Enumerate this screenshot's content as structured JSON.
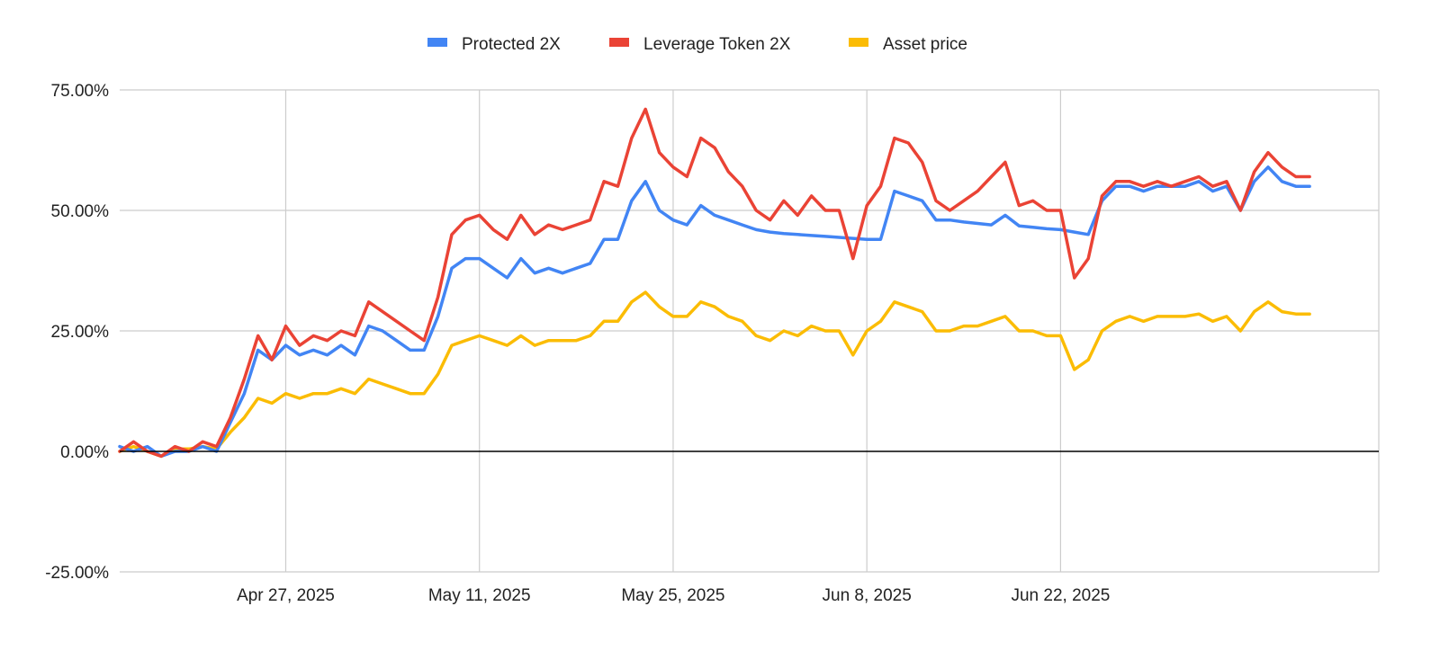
{
  "chart_data": {
    "type": "line",
    "title": "",
    "xlabel": "",
    "ylabel": "",
    "x_start": "2025-04-15",
    "x_end": "2025-07-15",
    "x_ticks": [
      {
        "label": "Apr 27, 2025",
        "date": "2025-04-27"
      },
      {
        "label": "May 11, 2025",
        "date": "2025-05-11"
      },
      {
        "label": "May 25, 2025",
        "date": "2025-05-25"
      },
      {
        "label": "Jun 8, 2025",
        "date": "2025-06-08"
      },
      {
        "label": "Jun 22, 2025",
        "date": "2025-06-22"
      }
    ],
    "ylim": [
      -25,
      75
    ],
    "y_ticks": [
      {
        "label": "75.00%",
        "value": 75
      },
      {
        "label": "50.00%",
        "value": 50
      },
      {
        "label": "25.00%",
        "value": 25
      },
      {
        "label": "0.00%",
        "value": 0
      },
      {
        "label": "-25.00%",
        "value": -25
      }
    ],
    "grid": true,
    "legend_position": "top-center",
    "series": [
      {
        "name": "Protected 2X",
        "color": "#4285f4",
        "points": [
          [
            "2025-04-15",
            1
          ],
          [
            "2025-04-16",
            0
          ],
          [
            "2025-04-17",
            1
          ],
          [
            "2025-04-18",
            -1
          ],
          [
            "2025-04-19",
            0
          ],
          [
            "2025-04-20",
            0
          ],
          [
            "2025-04-21",
            1
          ],
          [
            "2025-04-22",
            0
          ],
          [
            "2025-04-23",
            6
          ],
          [
            "2025-04-24",
            12
          ],
          [
            "2025-04-25",
            21
          ],
          [
            "2025-04-26",
            19
          ],
          [
            "2025-04-27",
            22
          ],
          [
            "2025-04-28",
            20
          ],
          [
            "2025-04-29",
            21
          ],
          [
            "2025-04-30",
            20
          ],
          [
            "2025-05-01",
            22
          ],
          [
            "2025-05-02",
            20
          ],
          [
            "2025-05-03",
            26
          ],
          [
            "2025-05-04",
            25
          ],
          [
            "2025-05-05",
            23
          ],
          [
            "2025-05-06",
            21
          ],
          [
            "2025-05-07",
            21
          ],
          [
            "2025-05-08",
            28
          ],
          [
            "2025-05-09",
            38
          ],
          [
            "2025-05-10",
            40
          ],
          [
            "2025-05-11",
            40
          ],
          [
            "2025-05-12",
            38
          ],
          [
            "2025-05-13",
            36
          ],
          [
            "2025-05-14",
            40
          ],
          [
            "2025-05-15",
            37
          ],
          [
            "2025-05-16",
            38
          ],
          [
            "2025-05-17",
            37
          ],
          [
            "2025-05-18",
            38
          ],
          [
            "2025-05-19",
            39
          ],
          [
            "2025-05-20",
            44
          ],
          [
            "2025-05-21",
            44
          ],
          [
            "2025-05-22",
            52
          ],
          [
            "2025-05-23",
            56
          ],
          [
            "2025-05-24",
            50
          ],
          [
            "2025-05-25",
            48
          ],
          [
            "2025-05-26",
            47
          ],
          [
            "2025-05-27",
            51
          ],
          [
            "2025-05-28",
            49
          ],
          [
            "2025-05-29",
            48
          ],
          [
            "2025-05-30",
            47
          ],
          [
            "2025-05-31",
            46
          ],
          [
            "2025-06-01",
            45.5
          ],
          [
            "2025-06-02",
            45.2
          ],
          [
            "2025-06-03",
            45
          ],
          [
            "2025-06-04",
            44.8
          ],
          [
            "2025-06-05",
            44.6
          ],
          [
            "2025-06-06",
            44.4
          ],
          [
            "2025-06-07",
            44.2
          ],
          [
            "2025-06-08",
            44
          ],
          [
            "2025-06-09",
            44
          ],
          [
            "2025-06-10",
            54
          ],
          [
            "2025-06-11",
            53
          ],
          [
            "2025-06-12",
            52
          ],
          [
            "2025-06-13",
            48
          ],
          [
            "2025-06-14",
            48
          ],
          [
            "2025-06-15",
            47.6
          ],
          [
            "2025-06-16",
            47.3
          ],
          [
            "2025-06-17",
            47
          ],
          [
            "2025-06-18",
            49
          ],
          [
            "2025-06-19",
            46.8
          ],
          [
            "2025-06-20",
            46.5
          ],
          [
            "2025-06-21",
            46.2
          ],
          [
            "2025-06-22",
            46
          ],
          [
            "2025-06-23",
            45.5
          ],
          [
            "2025-06-24",
            45
          ],
          [
            "2025-06-25",
            52
          ],
          [
            "2025-06-26",
            55
          ],
          [
            "2025-06-27",
            55
          ],
          [
            "2025-06-28",
            54
          ],
          [
            "2025-06-29",
            55
          ],
          [
            "2025-06-30",
            55
          ],
          [
            "2025-07-01",
            55
          ],
          [
            "2025-07-02",
            56
          ],
          [
            "2025-07-03",
            54
          ],
          [
            "2025-07-04",
            55
          ],
          [
            "2025-07-05",
            50
          ],
          [
            "2025-07-06",
            56
          ],
          [
            "2025-07-07",
            59
          ],
          [
            "2025-07-08",
            56
          ],
          [
            "2025-07-09",
            55
          ],
          [
            "2025-07-10",
            55
          ]
        ]
      },
      {
        "name": "Leverage Token 2X",
        "color": "#ea4335",
        "points": [
          [
            "2025-04-15",
            0
          ],
          [
            "2025-04-16",
            2
          ],
          [
            "2025-04-17",
            0
          ],
          [
            "2025-04-18",
            -1
          ],
          [
            "2025-04-19",
            1
          ],
          [
            "2025-04-20",
            0
          ],
          [
            "2025-04-21",
            2
          ],
          [
            "2025-04-22",
            1
          ],
          [
            "2025-04-23",
            7
          ],
          [
            "2025-04-24",
            15
          ],
          [
            "2025-04-25",
            24
          ],
          [
            "2025-04-26",
            19
          ],
          [
            "2025-04-27",
            26
          ],
          [
            "2025-04-28",
            22
          ],
          [
            "2025-04-29",
            24
          ],
          [
            "2025-04-30",
            23
          ],
          [
            "2025-05-01",
            25
          ],
          [
            "2025-05-02",
            24
          ],
          [
            "2025-05-03",
            31
          ],
          [
            "2025-05-04",
            29
          ],
          [
            "2025-05-05",
            27
          ],
          [
            "2025-05-06",
            25
          ],
          [
            "2025-05-07",
            23
          ],
          [
            "2025-05-08",
            32
          ],
          [
            "2025-05-09",
            45
          ],
          [
            "2025-05-10",
            48
          ],
          [
            "2025-05-11",
            49
          ],
          [
            "2025-05-12",
            46
          ],
          [
            "2025-05-13",
            44
          ],
          [
            "2025-05-14",
            49
          ],
          [
            "2025-05-15",
            45
          ],
          [
            "2025-05-16",
            47
          ],
          [
            "2025-05-17",
            46
          ],
          [
            "2025-05-18",
            47
          ],
          [
            "2025-05-19",
            48
          ],
          [
            "2025-05-20",
            56
          ],
          [
            "2025-05-21",
            55
          ],
          [
            "2025-05-22",
            65
          ],
          [
            "2025-05-23",
            71
          ],
          [
            "2025-05-24",
            62
          ],
          [
            "2025-05-25",
            59
          ],
          [
            "2025-05-26",
            57
          ],
          [
            "2025-05-27",
            65
          ],
          [
            "2025-05-28",
            63
          ],
          [
            "2025-05-29",
            58
          ],
          [
            "2025-05-30",
            55
          ],
          [
            "2025-05-31",
            50
          ],
          [
            "2025-06-01",
            48
          ],
          [
            "2025-06-02",
            52
          ],
          [
            "2025-06-03",
            49
          ],
          [
            "2025-06-04",
            53
          ],
          [
            "2025-06-05",
            50
          ],
          [
            "2025-06-06",
            50
          ],
          [
            "2025-06-07",
            40
          ],
          [
            "2025-06-08",
            51
          ],
          [
            "2025-06-09",
            55
          ],
          [
            "2025-06-10",
            65
          ],
          [
            "2025-06-11",
            64
          ],
          [
            "2025-06-12",
            60
          ],
          [
            "2025-06-13",
            52
          ],
          [
            "2025-06-14",
            50
          ],
          [
            "2025-06-15",
            52
          ],
          [
            "2025-06-16",
            54
          ],
          [
            "2025-06-17",
            57
          ],
          [
            "2025-06-18",
            60
          ],
          [
            "2025-06-19",
            51
          ],
          [
            "2025-06-20",
            52
          ],
          [
            "2025-06-21",
            50
          ],
          [
            "2025-06-22",
            50
          ],
          [
            "2025-06-23",
            36
          ],
          [
            "2025-06-24",
            40
          ],
          [
            "2025-06-25",
            53
          ],
          [
            "2025-06-26",
            56
          ],
          [
            "2025-06-27",
            56
          ],
          [
            "2025-06-28",
            55
          ],
          [
            "2025-06-29",
            56
          ],
          [
            "2025-06-30",
            55
          ],
          [
            "2025-07-01",
            56
          ],
          [
            "2025-07-02",
            57
          ],
          [
            "2025-07-03",
            55
          ],
          [
            "2025-07-04",
            56
          ],
          [
            "2025-07-05",
            50
          ],
          [
            "2025-07-06",
            58
          ],
          [
            "2025-07-07",
            62
          ],
          [
            "2025-07-08",
            59
          ],
          [
            "2025-07-09",
            57
          ],
          [
            "2025-07-10",
            57
          ]
        ]
      },
      {
        "name": "Asset price",
        "color": "#fbbc04",
        "points": [
          [
            "2025-04-15",
            0
          ],
          [
            "2025-04-16",
            1
          ],
          [
            "2025-04-17",
            0
          ],
          [
            "2025-04-18",
            -1
          ],
          [
            "2025-04-19",
            0.5
          ],
          [
            "2025-04-20",
            0.5
          ],
          [
            "2025-04-21",
            1
          ],
          [
            "2025-04-22",
            0.5
          ],
          [
            "2025-04-23",
            4
          ],
          [
            "2025-04-24",
            7
          ],
          [
            "2025-04-25",
            11
          ],
          [
            "2025-04-26",
            10
          ],
          [
            "2025-04-27",
            12
          ],
          [
            "2025-04-28",
            11
          ],
          [
            "2025-04-29",
            12
          ],
          [
            "2025-04-30",
            12
          ],
          [
            "2025-05-01",
            13
          ],
          [
            "2025-05-02",
            12
          ],
          [
            "2025-05-03",
            15
          ],
          [
            "2025-05-04",
            14
          ],
          [
            "2025-05-05",
            13
          ],
          [
            "2025-05-06",
            12
          ],
          [
            "2025-05-07",
            12
          ],
          [
            "2025-05-08",
            16
          ],
          [
            "2025-05-09",
            22
          ],
          [
            "2025-05-10",
            23
          ],
          [
            "2025-05-11",
            24
          ],
          [
            "2025-05-12",
            23
          ],
          [
            "2025-05-13",
            22
          ],
          [
            "2025-05-14",
            24
          ],
          [
            "2025-05-15",
            22
          ],
          [
            "2025-05-16",
            23
          ],
          [
            "2025-05-17",
            23
          ],
          [
            "2025-05-18",
            23
          ],
          [
            "2025-05-19",
            24
          ],
          [
            "2025-05-20",
            27
          ],
          [
            "2025-05-21",
            27
          ],
          [
            "2025-05-22",
            31
          ],
          [
            "2025-05-23",
            33
          ],
          [
            "2025-05-24",
            30
          ],
          [
            "2025-05-25",
            28
          ],
          [
            "2025-05-26",
            28
          ],
          [
            "2025-05-27",
            31
          ],
          [
            "2025-05-28",
            30
          ],
          [
            "2025-05-29",
            28
          ],
          [
            "2025-05-30",
            27
          ],
          [
            "2025-05-31",
            24
          ],
          [
            "2025-06-01",
            23
          ],
          [
            "2025-06-02",
            25
          ],
          [
            "2025-06-03",
            24
          ],
          [
            "2025-06-04",
            26
          ],
          [
            "2025-06-05",
            25
          ],
          [
            "2025-06-06",
            25
          ],
          [
            "2025-06-07",
            20
          ],
          [
            "2025-06-08",
            25
          ],
          [
            "2025-06-09",
            27
          ],
          [
            "2025-06-10",
            31
          ],
          [
            "2025-06-11",
            30
          ],
          [
            "2025-06-12",
            29
          ],
          [
            "2025-06-13",
            25
          ],
          [
            "2025-06-14",
            25
          ],
          [
            "2025-06-15",
            26
          ],
          [
            "2025-06-16",
            26
          ],
          [
            "2025-06-17",
            27
          ],
          [
            "2025-06-18",
            28
          ],
          [
            "2025-06-19",
            25
          ],
          [
            "2025-06-20",
            25
          ],
          [
            "2025-06-21",
            24
          ],
          [
            "2025-06-22",
            24
          ],
          [
            "2025-06-23",
            17
          ],
          [
            "2025-06-24",
            19
          ],
          [
            "2025-06-25",
            25
          ],
          [
            "2025-06-26",
            27
          ],
          [
            "2025-06-27",
            28
          ],
          [
            "2025-06-28",
            27
          ],
          [
            "2025-06-29",
            28
          ],
          [
            "2025-06-30",
            28
          ],
          [
            "2025-07-01",
            28
          ],
          [
            "2025-07-02",
            28.5
          ],
          [
            "2025-07-03",
            27
          ],
          [
            "2025-07-04",
            28
          ],
          [
            "2025-07-05",
            25
          ],
          [
            "2025-07-06",
            29
          ],
          [
            "2025-07-07",
            31
          ],
          [
            "2025-07-08",
            29
          ],
          [
            "2025-07-09",
            28.5
          ],
          [
            "2025-07-10",
            28.5
          ]
        ]
      }
    ]
  }
}
